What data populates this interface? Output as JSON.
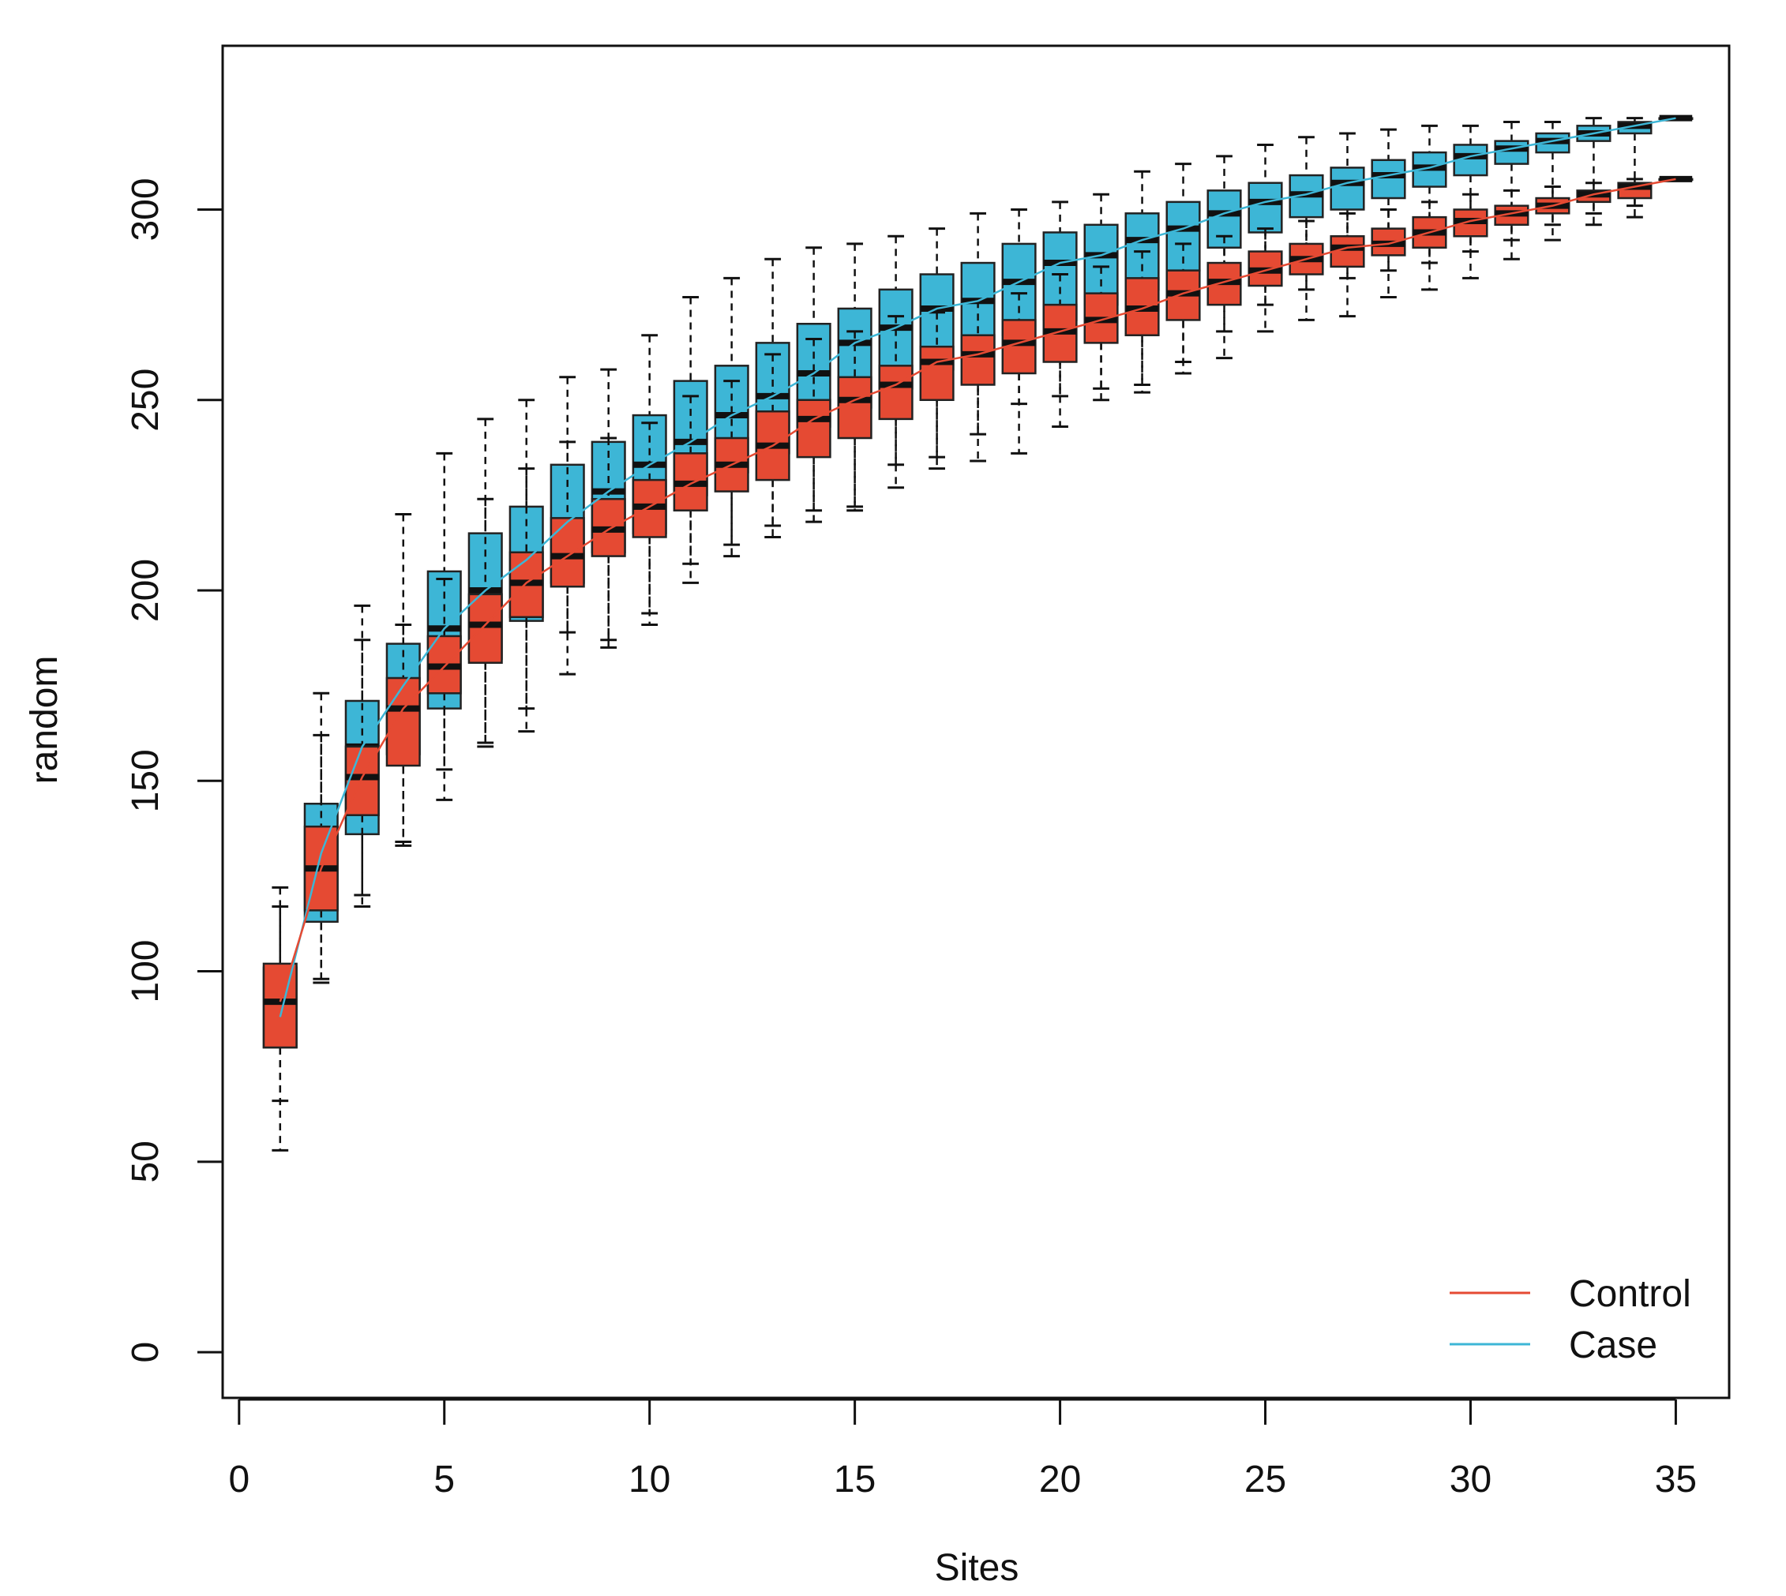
{
  "chart_data": {
    "type": "boxplot",
    "title": "",
    "xlabel": "Sites",
    "ylabel": "random",
    "xlim": [
      -0.4,
      36.3
    ],
    "ylim": [
      -12,
      343
    ],
    "xticks": [
      0,
      5,
      10,
      15,
      20,
      25,
      30,
      35
    ],
    "yticks": [
      0,
      50,
      100,
      150,
      200,
      250,
      300
    ],
    "grid": false,
    "legend_position": "bottom-right",
    "series": [
      {
        "name": "Case",
        "color": "#3db6d6",
        "sites": [
          1,
          2,
          3,
          4,
          5,
          6,
          7,
          8,
          9,
          10,
          11,
          12,
          13,
          14,
          15,
          16,
          17,
          18,
          19,
          20,
          21,
          22,
          23,
          24,
          25,
          26,
          27,
          28,
          29,
          30,
          31,
          32,
          33,
          34,
          35
        ],
        "box": [
          {
            "min": 53,
            "q1": 80,
            "median": 88,
            "q3": 101,
            "max": 122
          },
          {
            "min": 97,
            "q1": 113,
            "median": 131,
            "q3": 144,
            "max": 173
          },
          {
            "min": 117,
            "q1": 136,
            "median": 159,
            "q3": 171,
            "max": 196
          },
          {
            "min": 133,
            "q1": 157,
            "median": 175,
            "q3": 186,
            "max": 220
          },
          {
            "min": 145,
            "q1": 169,
            "median": 190,
            "q3": 205,
            "max": 236
          },
          {
            "min": 159,
            "q1": 182,
            "median": 200,
            "q3": 215,
            "max": 245
          },
          {
            "min": 163,
            "q1": 192,
            "median": 208,
            "q3": 222,
            "max": 250
          },
          {
            "min": 178,
            "q1": 202,
            "median": 218,
            "q3": 233,
            "max": 256
          },
          {
            "min": 185,
            "q1": 210,
            "median": 226,
            "q3": 239,
            "max": 258
          },
          {
            "min": 191,
            "q1": 215,
            "median": 233,
            "q3": 246,
            "max": 267
          },
          {
            "min": 202,
            "q1": 225,
            "median": 239,
            "q3": 255,
            "max": 277
          },
          {
            "min": 209,
            "q1": 231,
            "median": 246,
            "q3": 259,
            "max": 282
          },
          {
            "min": 214,
            "q1": 236,
            "median": 251,
            "q3": 265,
            "max": 287
          },
          {
            "min": 218,
            "q1": 243,
            "median": 257,
            "q3": 270,
            "max": 290
          },
          {
            "min": 221,
            "q1": 248,
            "median": 265,
            "q3": 274,
            "max": 291
          },
          {
            "min": 227,
            "q1": 253,
            "median": 269,
            "q3": 279,
            "max": 293
          },
          {
            "min": 232,
            "q1": 258,
            "median": 274,
            "q3": 283,
            "max": 295
          },
          {
            "min": 234,
            "q1": 263,
            "median": 276,
            "q3": 286,
            "max": 299
          },
          {
            "min": 236,
            "q1": 267,
            "median": 281,
            "q3": 291,
            "max": 300
          },
          {
            "min": 243,
            "q1": 271,
            "median": 286,
            "q3": 294,
            "max": 302
          },
          {
            "min": 250,
            "q1": 275,
            "median": 288,
            "q3": 296,
            "max": 304
          },
          {
            "min": 252,
            "q1": 279,
            "median": 292,
            "q3": 299,
            "max": 310
          },
          {
            "min": 257,
            "q1": 284,
            "median": 295,
            "q3": 302,
            "max": 312
          },
          {
            "min": 261,
            "q1": 290,
            "median": 299,
            "q3": 305,
            "max": 314
          },
          {
            "min": 268,
            "q1": 294,
            "median": 302,
            "q3": 307,
            "max": 317
          },
          {
            "min": 271,
            "q1": 298,
            "median": 304,
            "q3": 309,
            "max": 319
          },
          {
            "min": 272,
            "q1": 300,
            "median": 307,
            "q3": 311,
            "max": 320
          },
          {
            "min": 277,
            "q1": 303,
            "median": 309,
            "q3": 313,
            "max": 321
          },
          {
            "min": 279,
            "q1": 306,
            "median": 311,
            "q3": 315,
            "max": 322
          },
          {
            "min": 282,
            "q1": 309,
            "median": 314,
            "q3": 317,
            "max": 322
          },
          {
            "min": 287,
            "q1": 312,
            "median": 316,
            "q3": 318,
            "max": 323
          },
          {
            "min": 292,
            "q1": 315,
            "median": 318,
            "q3": 320,
            "max": 323
          },
          {
            "min": 296,
            "q1": 318,
            "median": 320,
            "q3": 322,
            "max": 324
          },
          {
            "min": 298,
            "q1": 320,
            "median": 322,
            "q3": 323,
            "max": 324
          },
          {
            "min": 324,
            "q1": 324,
            "median": 324,
            "q3": 324,
            "max": 324
          }
        ]
      },
      {
        "name": "Control",
        "color": "#e54a33",
        "sites": [
          1,
          2,
          3,
          4,
          5,
          6,
          7,
          8,
          9,
          10,
          11,
          12,
          13,
          14,
          15,
          16,
          17,
          18,
          19,
          20,
          21,
          22,
          23,
          24,
          25,
          26,
          27,
          28,
          29,
          30,
          31,
          32,
          33,
          34,
          35
        ],
        "box": [
          {
            "min": 66,
            "q1": 80,
            "median": 92,
            "q3": 102,
            "max": 117
          },
          {
            "min": 98,
            "q1": 116,
            "median": 127,
            "q3": 138,
            "max": 162
          },
          {
            "min": 120,
            "q1": 141,
            "median": 151,
            "q3": 159,
            "max": 187
          },
          {
            "min": 134,
            "q1": 154,
            "median": 169,
            "q3": 177,
            "max": 191
          },
          {
            "min": 153,
            "q1": 173,
            "median": 180,
            "q3": 188,
            "max": 203
          },
          {
            "min": 160,
            "q1": 181,
            "median": 191,
            "q3": 199,
            "max": 224
          },
          {
            "min": 169,
            "q1": 193,
            "median": 202,
            "q3": 210,
            "max": 232
          },
          {
            "min": 189,
            "q1": 201,
            "median": 209,
            "q3": 219,
            "max": 239
          },
          {
            "min": 187,
            "q1": 209,
            "median": 216,
            "q3": 224,
            "max": 240
          },
          {
            "min": 194,
            "q1": 214,
            "median": 222,
            "q3": 229,
            "max": 244
          },
          {
            "min": 207,
            "q1": 221,
            "median": 228,
            "q3": 236,
            "max": 251
          },
          {
            "min": 212,
            "q1": 226,
            "median": 233,
            "q3": 240,
            "max": 255
          },
          {
            "min": 217,
            "q1": 229,
            "median": 238,
            "q3": 247,
            "max": 262
          },
          {
            "min": 221,
            "q1": 235,
            "median": 245,
            "q3": 250,
            "max": 266
          },
          {
            "min": 222,
            "q1": 240,
            "median": 250,
            "q3": 256,
            "max": 268
          },
          {
            "min": 233,
            "q1": 245,
            "median": 254,
            "q3": 259,
            "max": 272
          },
          {
            "min": 235,
            "q1": 250,
            "median": 260,
            "q3": 264,
            "max": 273
          },
          {
            "min": 241,
            "q1": 254,
            "median": 262,
            "q3": 267,
            "max": 276
          },
          {
            "min": 249,
            "q1": 257,
            "median": 265,
            "q3": 271,
            "max": 278
          },
          {
            "min": 251,
            "q1": 260,
            "median": 268,
            "q3": 275,
            "max": 283
          },
          {
            "min": 253,
            "q1": 265,
            "median": 271,
            "q3": 278,
            "max": 285
          },
          {
            "min": 254,
            "q1": 267,
            "median": 274,
            "q3": 282,
            "max": 289
          },
          {
            "min": 260,
            "q1": 271,
            "median": 278,
            "q3": 284,
            "max": 291
          },
          {
            "min": 268,
            "q1": 275,
            "median": 281,
            "q3": 286,
            "max": 293
          },
          {
            "min": 275,
            "q1": 280,
            "median": 284,
            "q3": 289,
            "max": 295
          },
          {
            "min": 279,
            "q1": 283,
            "median": 287,
            "q3": 291,
            "max": 297
          },
          {
            "min": 282,
            "q1": 285,
            "median": 290,
            "q3": 293,
            "max": 299
          },
          {
            "min": 284,
            "q1": 288,
            "median": 291,
            "q3": 295,
            "max": 300
          },
          {
            "min": 286,
            "q1": 290,
            "median": 294,
            "q3": 298,
            "max": 302
          },
          {
            "min": 289,
            "q1": 293,
            "median": 297,
            "q3": 300,
            "max": 304
          },
          {
            "min": 292,
            "q1": 296,
            "median": 299,
            "q3": 301,
            "max": 305
          },
          {
            "min": 296,
            "q1": 299,
            "median": 301,
            "q3": 303,
            "max": 306
          },
          {
            "min": 299,
            "q1": 302,
            "median": 304,
            "q3": 305,
            "max": 307
          },
          {
            "min": 301,
            "q1": 303,
            "median": 306,
            "q3": 307,
            "max": 308
          },
          {
            "min": 308,
            "q1": 308,
            "median": 308,
            "q3": 308,
            "max": 308
          }
        ]
      }
    ]
  }
}
